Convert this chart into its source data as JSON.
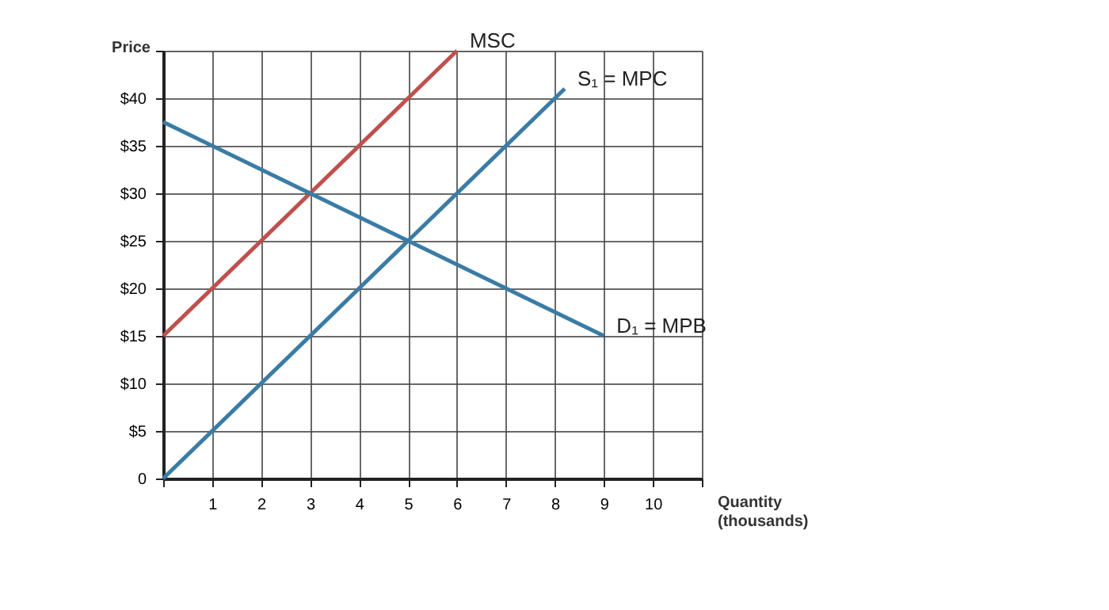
{
  "chart_data": {
    "type": "line",
    "ylabel": "Price",
    "xlabel": "Quantity\n(thousands)",
    "xlim": [
      0,
      11
    ],
    "ylim": [
      0,
      45
    ],
    "xticks": [
      {
        "value": 0,
        "label": null
      },
      1,
      2,
      3,
      4,
      5,
      6,
      7,
      8,
      9,
      10,
      {
        "value": 11,
        "label": null
      }
    ],
    "yticks": [
      0,
      {
        "value": 5,
        "label": "$5"
      },
      {
        "value": 10,
        "label": "$10"
      },
      {
        "value": 15,
        "label": "$15"
      },
      {
        "value": 20,
        "label": "$20"
      },
      {
        "value": 25,
        "label": "$25"
      },
      {
        "value": 30,
        "label": "$30"
      },
      {
        "value": 35,
        "label": "$35"
      },
      {
        "value": 40,
        "label": "$40"
      },
      {
        "value": 45,
        "label": null
      }
    ],
    "grid": true,
    "legend": false,
    "marker": "none",
    "line_style": "solid",
    "series": [
      {
        "name": "MSC",
        "color": "#c0504d",
        "x": [
          0,
          6
        ],
        "values": [
          15,
          45
        ]
      },
      {
        "name": "S₁ = MPC",
        "color": "#3a7ca5",
        "x": [
          0,
          8.2
        ],
        "values": [
          0,
          41
        ]
      },
      {
        "name": "D₁ = MPB",
        "color": "#3a7ca5",
        "x": [
          0,
          9
        ],
        "values": [
          37.5,
          15
        ]
      }
    ]
  }
}
